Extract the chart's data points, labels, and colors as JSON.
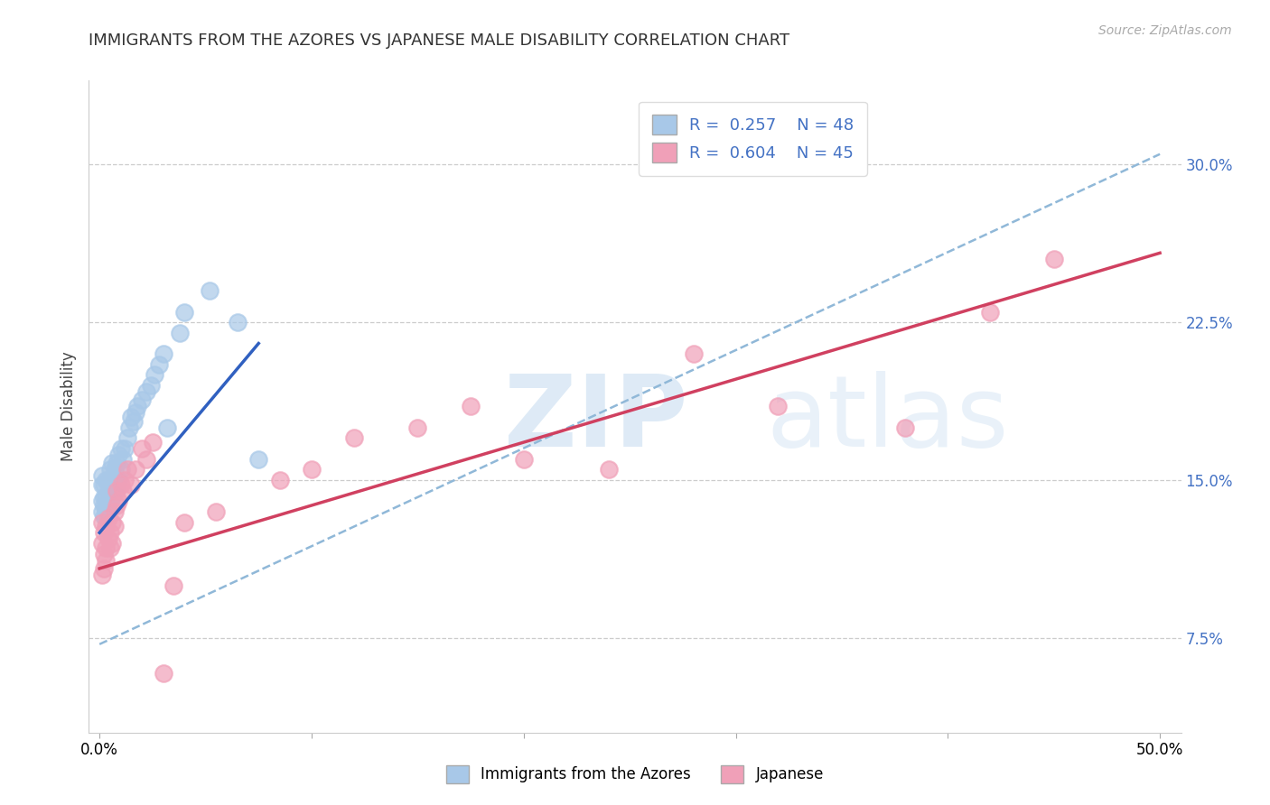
{
  "title": "IMMIGRANTS FROM THE AZORES VS JAPANESE MALE DISABILITY CORRELATION CHART",
  "source": "Source: ZipAtlas.com",
  "ylabel": "Male Disability",
  "xlim": [
    0.0,
    0.5
  ],
  "ylim": [
    0.03,
    0.32
  ],
  "ytick_right_labels": [
    "7.5%",
    "15.0%",
    "22.5%",
    "30.0%"
  ],
  "ytick_right_values": [
    0.075,
    0.15,
    0.225,
    0.3
  ],
  "blue_color": "#a8c8e8",
  "pink_color": "#f0a0b8",
  "blue_line_color": "#3060c0",
  "pink_line_color": "#d04060",
  "dashed_line_color": "#90b8d8",
  "azores_scatter_x": [
    0.001,
    0.001,
    0.001,
    0.001,
    0.002,
    0.002,
    0.002,
    0.002,
    0.003,
    0.003,
    0.003,
    0.004,
    0.004,
    0.004,
    0.005,
    0.005,
    0.005,
    0.006,
    0.006,
    0.006,
    0.007,
    0.007,
    0.008,
    0.008,
    0.009,
    0.009,
    0.01,
    0.01,
    0.011,
    0.012,
    0.013,
    0.014,
    0.015,
    0.016,
    0.017,
    0.018,
    0.02,
    0.022,
    0.024,
    0.026,
    0.028,
    0.03,
    0.032,
    0.038,
    0.04,
    0.052,
    0.065,
    0.075
  ],
  "azores_scatter_y": [
    0.135,
    0.14,
    0.148,
    0.152,
    0.133,
    0.138,
    0.142,
    0.148,
    0.136,
    0.142,
    0.15,
    0.138,
    0.145,
    0.15,
    0.14,
    0.148,
    0.155,
    0.142,
    0.15,
    0.158,
    0.145,
    0.155,
    0.148,
    0.158,
    0.15,
    0.162,
    0.155,
    0.165,
    0.16,
    0.165,
    0.17,
    0.175,
    0.18,
    0.178,
    0.182,
    0.185,
    0.188,
    0.192,
    0.195,
    0.2,
    0.205,
    0.21,
    0.175,
    0.22,
    0.23,
    0.24,
    0.225,
    0.16
  ],
  "japanese_scatter_x": [
    0.001,
    0.001,
    0.001,
    0.002,
    0.002,
    0.002,
    0.003,
    0.003,
    0.003,
    0.004,
    0.004,
    0.005,
    0.005,
    0.006,
    0.006,
    0.007,
    0.007,
    0.008,
    0.008,
    0.009,
    0.01,
    0.011,
    0.012,
    0.013,
    0.015,
    0.017,
    0.02,
    0.022,
    0.025,
    0.03,
    0.035,
    0.04,
    0.055,
    0.085,
    0.1,
    0.12,
    0.15,
    0.175,
    0.2,
    0.24,
    0.28,
    0.32,
    0.38,
    0.42,
    0.45
  ],
  "japanese_scatter_y": [
    0.12,
    0.13,
    0.105,
    0.115,
    0.125,
    0.108,
    0.118,
    0.128,
    0.112,
    0.122,
    0.132,
    0.125,
    0.118,
    0.13,
    0.12,
    0.135,
    0.128,
    0.138,
    0.145,
    0.14,
    0.148,
    0.145,
    0.15,
    0.155,
    0.148,
    0.155,
    0.165,
    0.16,
    0.168,
    0.058,
    0.1,
    0.13,
    0.135,
    0.15,
    0.155,
    0.17,
    0.175,
    0.185,
    0.16,
    0.155,
    0.21,
    0.185,
    0.175,
    0.23,
    0.255
  ],
  "blue_trend_start_x": 0.0,
  "blue_trend_start_y": 0.125,
  "blue_trend_end_x": 0.075,
  "blue_trend_end_y": 0.215,
  "pink_trend_start_x": 0.0,
  "pink_trend_start_y": 0.108,
  "pink_trend_end_x": 0.5,
  "pink_trend_end_y": 0.258,
  "dashed_trend_start_x": 0.0,
  "dashed_trend_start_y": 0.072,
  "dashed_trend_end_x": 0.5,
  "dashed_trend_end_y": 0.305
}
